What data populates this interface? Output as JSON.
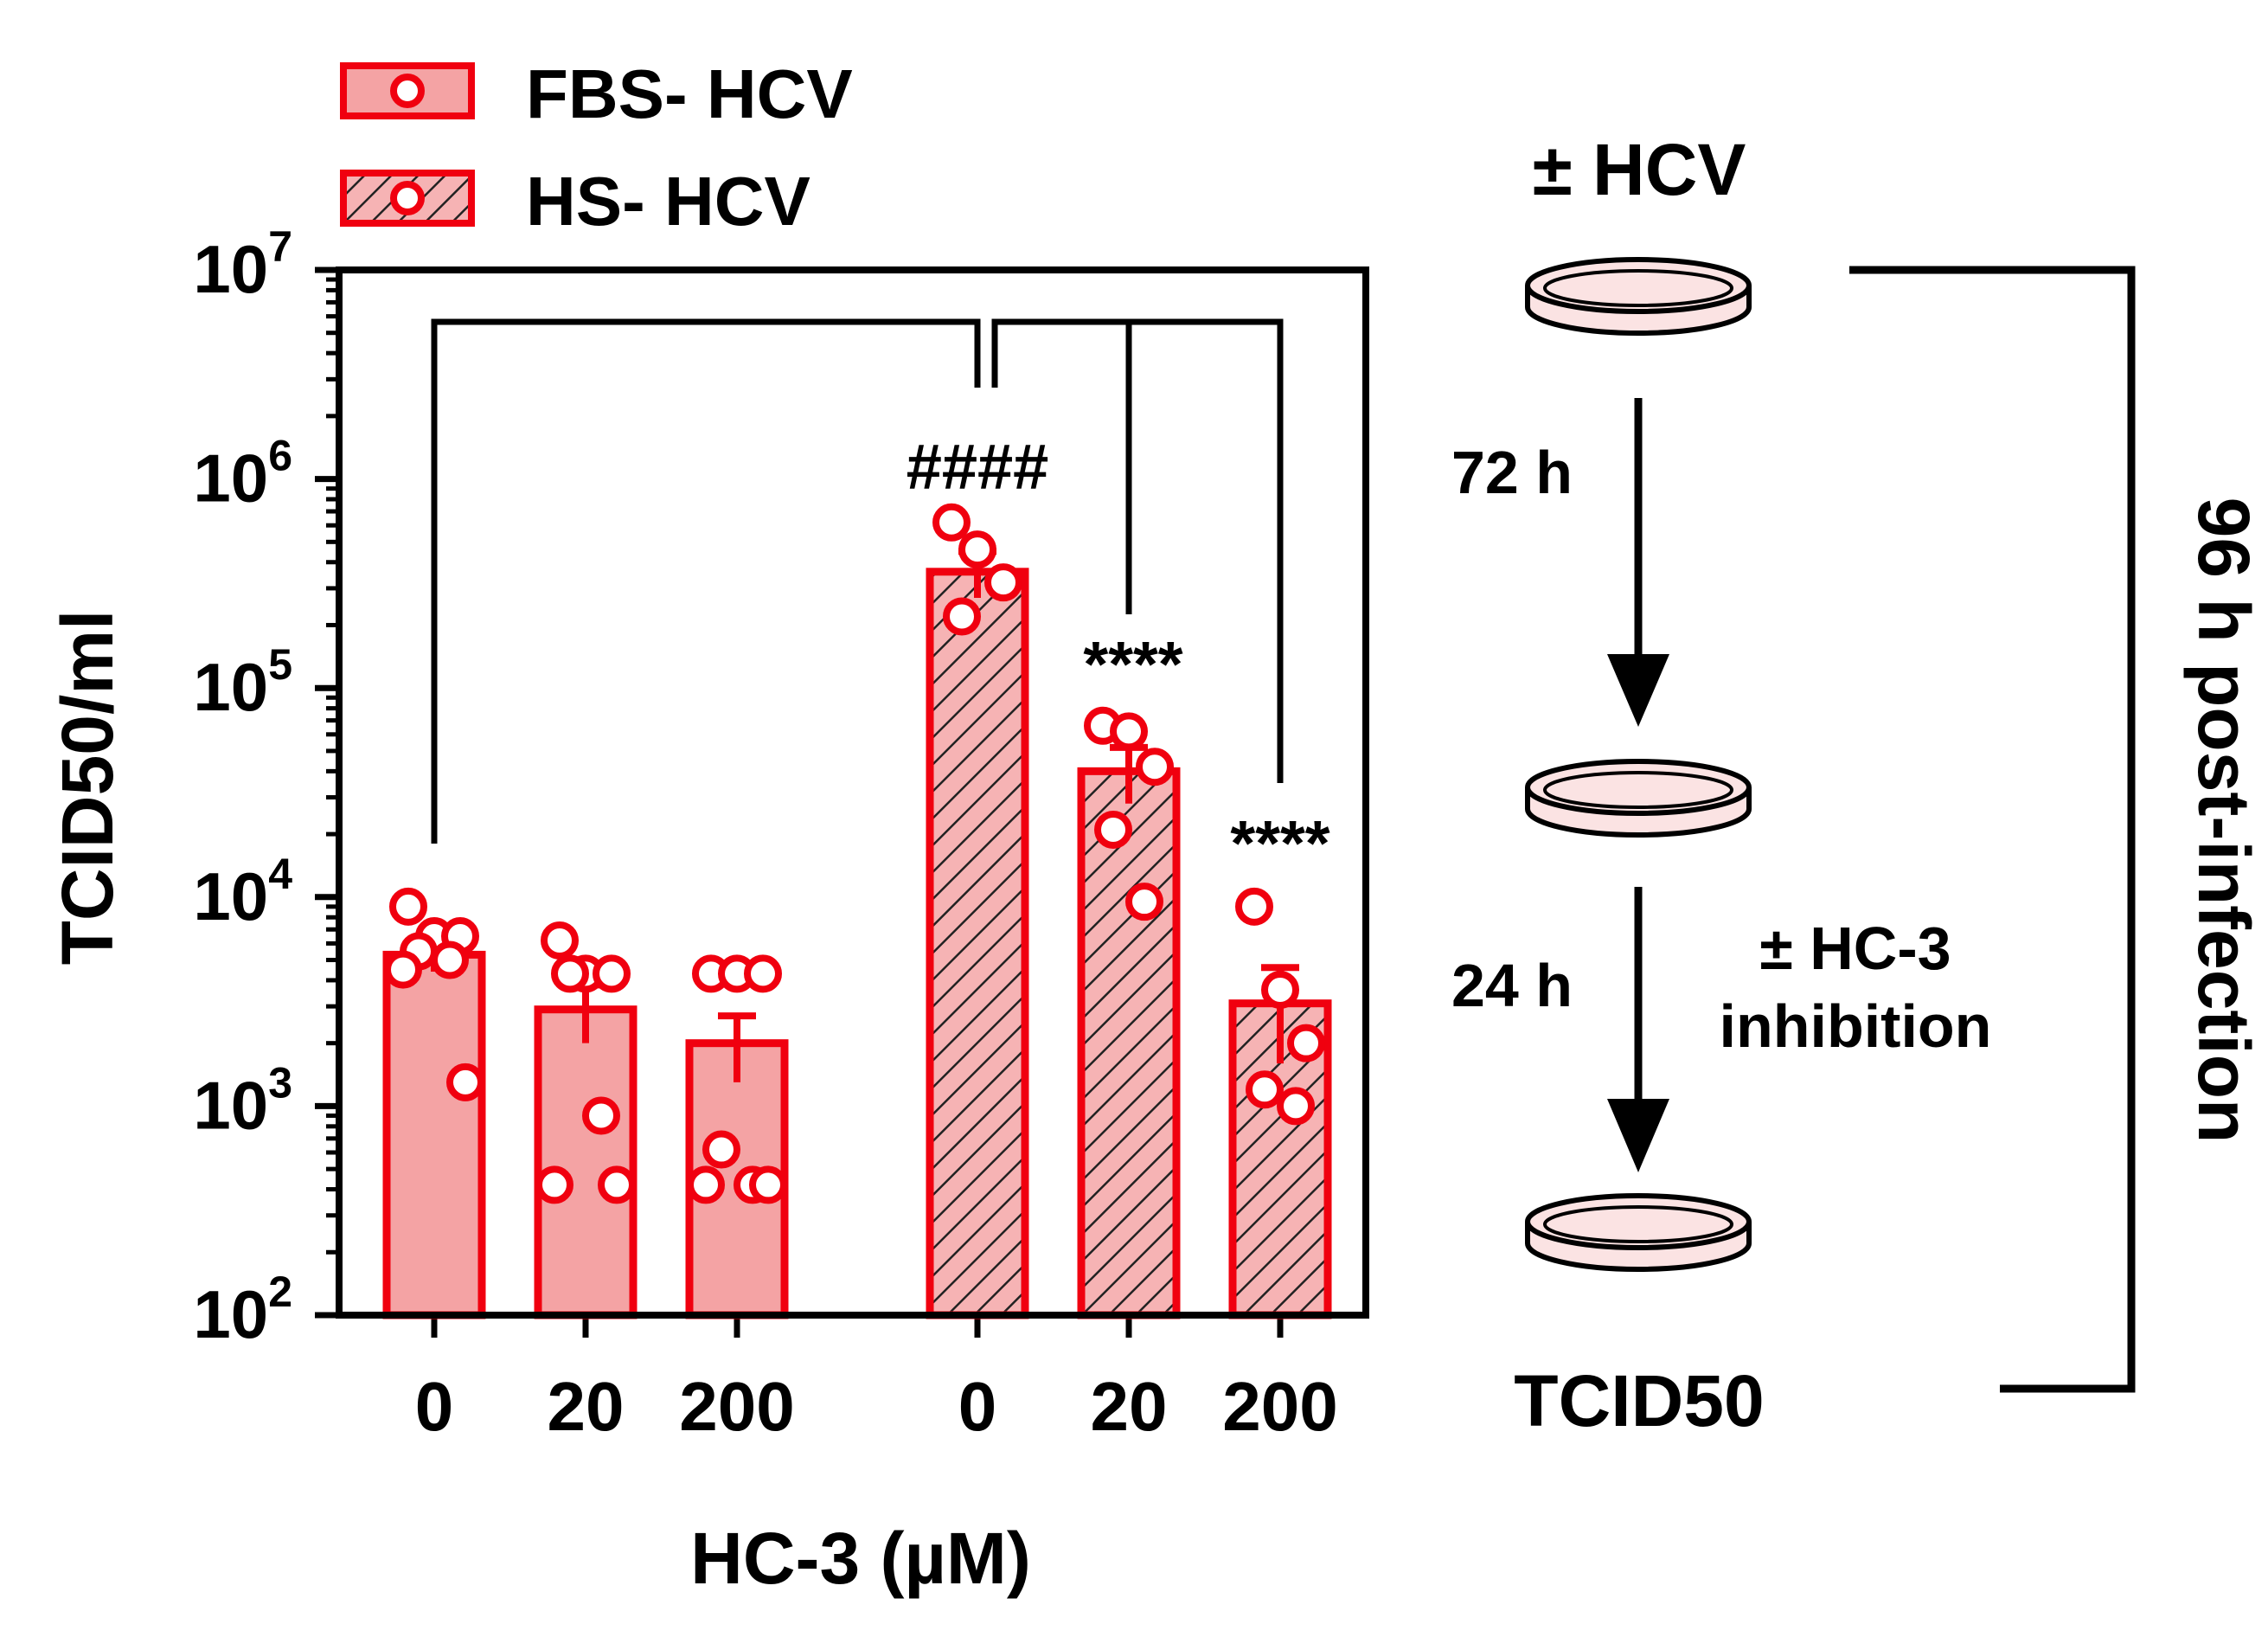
{
  "chart_data": {
    "type": "bar",
    "scale": "log",
    "ylabel": "TCID50/ml",
    "xlabel": "HC-3 (µM)",
    "ylim": [
      100,
      10000000
    ],
    "y_ticks": [
      {
        "value": 100,
        "base": "10",
        "exp": "2"
      },
      {
        "value": 1000,
        "base": "10",
        "exp": "3"
      },
      {
        "value": 10000,
        "base": "10",
        "exp": "4"
      },
      {
        "value": 100000,
        "base": "10",
        "exp": "5"
      },
      {
        "value": 1000000,
        "base": "10",
        "exp": "6"
      },
      {
        "value": 10000000,
        "base": "10",
        "exp": "7"
      }
    ],
    "categories": [
      "0",
      "20",
      "200",
      "0",
      "20",
      "200"
    ],
    "legend": [
      {
        "name": "FBS- HCV",
        "pattern": "solid"
      },
      {
        "name": "HS- HCV",
        "pattern": "hatched"
      }
    ],
    "series": [
      {
        "name": "FBS- HCV",
        "pattern": "solid",
        "concentrations": [
          "0",
          "20",
          "200"
        ],
        "means": [
          5300,
          2900,
          2000
        ],
        "sem": [
          900,
          900,
          700
        ],
        "points": [
          [
            9000,
            6500,
            6500,
            5500,
            5000,
            4500,
            1300
          ],
          [
            6200,
            4300,
            4300,
            4300,
            900,
            420,
            420
          ],
          [
            4300,
            4300,
            4300,
            620,
            420,
            420,
            420
          ]
        ],
        "annotations": [
          "",
          "",
          ""
        ]
      },
      {
        "name": "HS- HCV",
        "pattern": "hatched",
        "concentrations": [
          "0",
          "20",
          "200"
        ],
        "means": [
          360000,
          40000,
          3100
        ],
        "sem": [
          90000,
          12000,
          1500
        ],
        "points": [
          [
            620000,
            460000,
            320000,
            220000
          ],
          [
            66000,
            62000,
            42000,
            21000,
            9500
          ],
          [
            9000,
            3600,
            2000,
            1200,
            1000
          ]
        ],
        "annotations": [
          "####",
          "****",
          "****"
        ]
      }
    ],
    "comparisons": [
      {
        "from": "FBS 0",
        "to": "HS 0",
        "label": "####"
      },
      {
        "from": "HS 0",
        "to": "HS 20",
        "label": "****"
      },
      {
        "from": "HS 0",
        "to": "HS 200",
        "label": "****"
      }
    ]
  },
  "schematic": {
    "top_label": "± HCV",
    "step1_time": "72 h",
    "step2_time": "24 h",
    "treatment_line1": "± HC-3",
    "treatment_line2": "inhibition",
    "bottom_label": "TCID50",
    "bracket_label": "96 h post-infection"
  },
  "colors": {
    "accent": "#f0000f",
    "bar_fill": "#f4a3a4",
    "hatch_bg": "#f6b3b4",
    "dish_fill": "#fbe3e3"
  }
}
